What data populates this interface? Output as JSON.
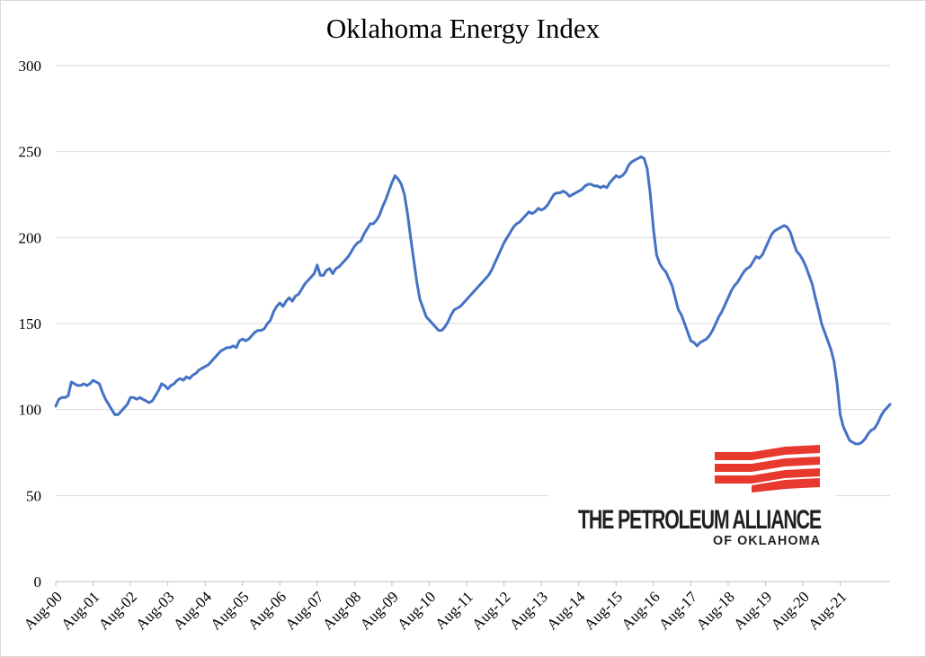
{
  "logo": {
    "name": "THE PETROLEUM ALLIANCE",
    "sub": "OF OKLAHOMA",
    "stripe_color": "#e8392f",
    "text_color": "#231f20"
  },
  "chart_data": {
    "type": "line",
    "title": "Oklahoma Energy Index",
    "xlabel": "",
    "ylabel": "",
    "ylim": [
      0,
      300
    ],
    "yticks": [
      0,
      50,
      100,
      150,
      200,
      250,
      300
    ],
    "grid": true,
    "legend": "none",
    "line_color": "#4472c4",
    "xtick_labels": [
      "Aug-00",
      "Aug-01",
      "Aug-02",
      "Aug-03",
      "Aug-04",
      "Aug-05",
      "Aug-06",
      "Aug-07",
      "Aug-08",
      "Aug-09",
      "Aug-10",
      "Aug-11",
      "Aug-12",
      "Aug-13",
      "Aug-14",
      "Aug-15",
      "Aug-16",
      "Aug-17",
      "Aug-18",
      "Aug-19",
      "Aug-20",
      "Aug-21"
    ],
    "series": [
      {
        "x_start": "Aug-00",
        "frequency": "monthly",
        "values": [
          102,
          106,
          107,
          107,
          108,
          116,
          115,
          114,
          114,
          115,
          114,
          115,
          117,
          116,
          115,
          110,
          106,
          103,
          100,
          97,
          97,
          99,
          101,
          103,
          107,
          107,
          106,
          107,
          106,
          105,
          104,
          105,
          108,
          111,
          115,
          114,
          112,
          114,
          115,
          117,
          118,
          117,
          119,
          118,
          120,
          121,
          123,
          124,
          125,
          126,
          128,
          130,
          132,
          134,
          135,
          136,
          136,
          137,
          136,
          140,
          141,
          140,
          141,
          143,
          145,
          146,
          146,
          147,
          150,
          152,
          157,
          160,
          162,
          160,
          163,
          165,
          163,
          166,
          167,
          170,
          173,
          175,
          177,
          179,
          184,
          178,
          178,
          181,
          182,
          179,
          182,
          183,
          185,
          187,
          189,
          192,
          195,
          197,
          198,
          202,
          205,
          208,
          208,
          210,
          213,
          218,
          222,
          227,
          232,
          236,
          234,
          231,
          225,
          214,
          200,
          187,
          174,
          164,
          159,
          154,
          152,
          150,
          148,
          146,
          146,
          148,
          151,
          155,
          158,
          159,
          160,
          162,
          164,
          166,
          168,
          170,
          172,
          174,
          176,
          178,
          181,
          185,
          189,
          193,
          197,
          200,
          203,
          206,
          208,
          209,
          211,
          213,
          215,
          214,
          215,
          217,
          216,
          217,
          219,
          222,
          225,
          226,
          226,
          227,
          226,
          224,
          225,
          226,
          227,
          228,
          230,
          231,
          231,
          230,
          230,
          229,
          230,
          229,
          232,
          234,
          236,
          235,
          236,
          238,
          242,
          244,
          245,
          246,
          247,
          246,
          240,
          225,
          205,
          190,
          185,
          182,
          180,
          176,
          172,
          165,
          158,
          155,
          150,
          145,
          140,
          139,
          137,
          139,
          140,
          141,
          143,
          146,
          150,
          154,
          157,
          161,
          165,
          169,
          172,
          174,
          177,
          180,
          182,
          183,
          186,
          189,
          188,
          190,
          194,
          198,
          202,
          204,
          205,
          206,
          207,
          206,
          203,
          197,
          192,
          190,
          187,
          183,
          178,
          173,
          165,
          158,
          150,
          145,
          140,
          135,
          128,
          115,
          97,
          90,
          86,
          82,
          81,
          80,
          80,
          81,
          83,
          86,
          88,
          89,
          92,
          96,
          99,
          101,
          103
        ]
      }
    ]
  }
}
